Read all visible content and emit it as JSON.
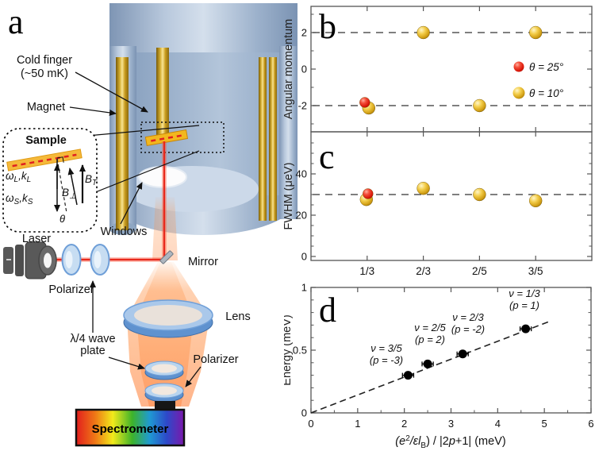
{
  "panel_a": {
    "label": "a",
    "cold_finger_1": "Cold finger",
    "cold_finger_2": "(~50 mK)",
    "magnet": "Magnet",
    "windows": "Windows",
    "laser": "Laser",
    "polarizer_top": "Polarizer",
    "mirror": "Mirror",
    "lens": "Lens",
    "waveplate_1": "λ/4 wave",
    "waveplate_2": "plate",
    "polarizer_bottom": "Polarizer",
    "spectrometer": "Spectrometer",
    "inset": {
      "sample": "Sample",
      "theta": "θ",
      "omega_l": {
        "t1": "ω",
        "s1": "L",
        "t2": ",k",
        "s2": "L"
      },
      "omega_s": {
        "t1": "ω",
        "s1": "S",
        "t2": ",k",
        "s2": "S"
      },
      "b_perp": {
        "t1": "B",
        "s1": "⊥"
      },
      "b_t": {
        "t1": "B",
        "s1": "T"
      }
    }
  },
  "chart_data": [
    {
      "panel": "b",
      "label": "b",
      "type": "scatter",
      "ylabel": "Angular momentum",
      "ylim": [
        -3.4,
        3.4
      ],
      "yticks": [
        2,
        0,
        -2
      ],
      "yticks_minor": [
        3,
        1,
        -1,
        -3
      ],
      "categories": [
        "1/3",
        "2/3",
        "2/5",
        "3/5"
      ],
      "guide_lines": [
        2,
        -2
      ],
      "grid": false,
      "legend_position": "middle-right",
      "series": [
        {
          "name": "θ = 25°",
          "color": "#e01e10",
          "points": [
            {
              "x": "1/3",
              "y": -2
            }
          ]
        },
        {
          "name": "θ = 10°",
          "color": "#d9a50f",
          "points": [
            {
              "x": "1/3",
              "y": -2
            },
            {
              "x": "2/3",
              "y": 2
            },
            {
              "x": "2/5",
              "y": -2
            },
            {
              "x": "3/5",
              "y": 2
            }
          ]
        }
      ]
    },
    {
      "panel": "c",
      "label": "c",
      "type": "scatter",
      "ylabel": "FWHM (μeV)",
      "ylim": [
        0,
        60
      ],
      "yticks": [
        40,
        20,
        0
      ],
      "yticks_minor": [
        5,
        10,
        15,
        25,
        30,
        35,
        45,
        50,
        55
      ],
      "categories": [
        "1/3",
        "2/3",
        "2/5",
        "3/5"
      ],
      "guide_lines": [
        30
      ],
      "grid": false,
      "series": [
        {
          "name": "θ = 25°",
          "color": "#e01e10",
          "points": [
            {
              "x": "1/3",
              "y": 30
            }
          ]
        },
        {
          "name": "θ = 10°",
          "color": "#d9a50f",
          "points": [
            {
              "x": "1/3",
              "y": 28
            },
            {
              "x": "2/3",
              "y": 33
            },
            {
              "x": "2/5",
              "y": 30
            },
            {
              "x": "3/5",
              "y": 27
            }
          ]
        }
      ]
    },
    {
      "panel": "d",
      "label": "d",
      "type": "scatter",
      "ylabel": "Energy (meV)",
      "xlabel_parts": {
        "t1": "(e",
        "sup1": "2",
        "t2": "/εl",
        "sub1": "B",
        "t3": ") / |2",
        "t4": "p",
        "t5": "+1| (meV)"
      },
      "xlim": [
        0,
        6
      ],
      "ylim": [
        0,
        1
      ],
      "xticks": [
        0,
        1,
        2,
        3,
        4,
        5,
        6
      ],
      "yticks": [
        0,
        0.5,
        1
      ],
      "fit_line": {
        "x1": 0,
        "y1": 0,
        "x2": 5.15,
        "y2": 0.735,
        "dashed": true
      },
      "points": [
        {
          "x": 2.08,
          "y": 0.3,
          "xerr": 0.12,
          "label_line1": "ν = 3/5",
          "label_line2": "(p = -3)"
        },
        {
          "x": 2.5,
          "y": 0.39,
          "xerr": 0.12,
          "label_line1": "ν = 2/5",
          "label_line2": "(p = 2)"
        },
        {
          "x": 3.25,
          "y": 0.47,
          "xerr": 0.12,
          "label_line1": "ν = 2/3",
          "label_line2": "(p = -2)"
        },
        {
          "x": 4.6,
          "y": 0.67,
          "xerr": 0.12,
          "label_line1": "ν = 1/3",
          "label_line2": "(p = 1)"
        }
      ]
    }
  ],
  "colors": {
    "gold_marker": "#d9a50f",
    "red_marker": "#e01e10",
    "beam_red": "#e8291c",
    "cryostat_blue": "#9db3cf",
    "guide_gray": "#555555"
  }
}
